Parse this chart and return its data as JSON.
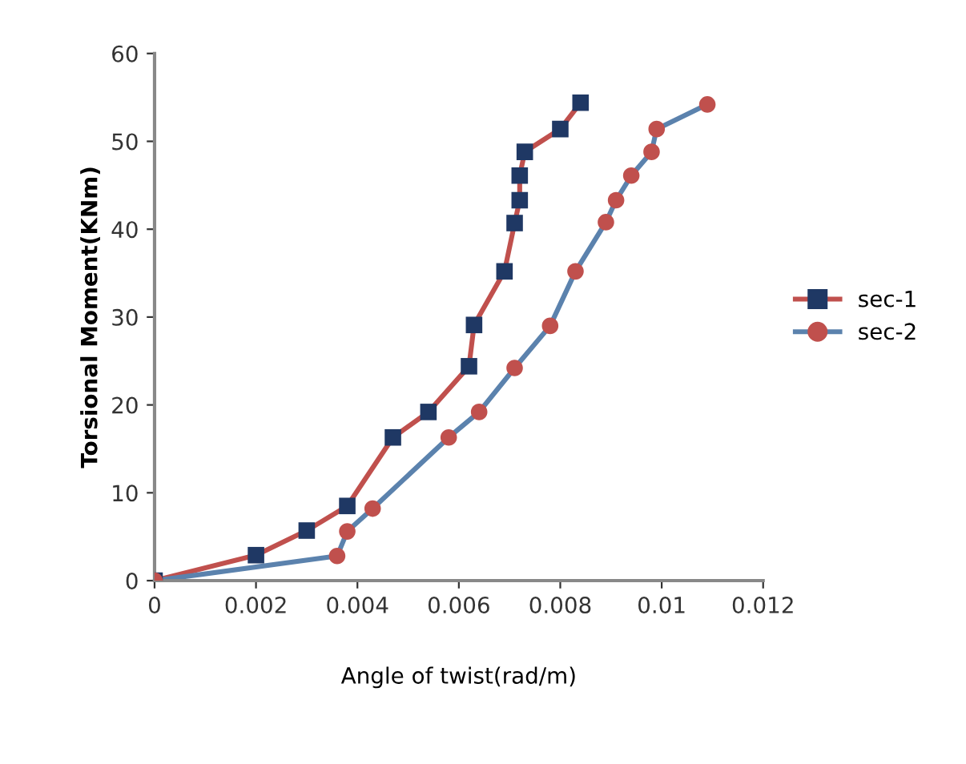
{
  "chart_data": {
    "type": "line",
    "xlabel": "Angle of twist(rad/m)",
    "ylabel": "Torsional Moment(KNm)",
    "xlim": [
      0,
      0.012
    ],
    "xticks": [
      0,
      0.002,
      0.004,
      0.006,
      0.008,
      0.01,
      0.012
    ],
    "ylim": [
      0,
      60
    ],
    "yticks": [
      0,
      10,
      20,
      30,
      40,
      50,
      60
    ],
    "grid": false,
    "legend": "right",
    "series": [
      {
        "name": "sec-1",
        "color": "#c0504d",
        "marker": "square",
        "colors": [
          "#1f3864",
          "#1f3864",
          "#1f3864",
          "#1f3864",
          "#1f3864",
          "#1f3864",
          "#1f3864",
          "#1f3864",
          "#1f3864",
          "#1f3864",
          "#1f3864",
          "#1f3864",
          "#1f3864",
          "#1f3864",
          "#1f3864"
        ],
        "x": [
          0,
          0.002,
          0.003,
          0.0038,
          0.0047,
          0.0054,
          0.0062,
          0.0063,
          0.0069,
          0.0071,
          0.0072,
          0.0072,
          0.0073,
          0.008,
          0.0084
        ],
        "values": [
          0,
          2.9,
          5.7,
          8.5,
          16.3,
          19.2,
          24.4,
          29.1,
          35.2,
          40.7,
          43.3,
          46.1,
          48.8,
          51.4,
          54.4
        ]
      },
      {
        "name": "sec-2",
        "color": "#5b82ad",
        "marker": "circle",
        "colors": [
          "#c0504d",
          "#c0504d",
          "#c0504d",
          "#c0504d",
          "#c0504d",
          "#c0504d",
          "#c0504d",
          "#c0504d",
          "#c0504d",
          "#c0504d",
          "#c0504d",
          "#c0504d",
          "#c0504d",
          "#c0504d",
          "#c0504d"
        ],
        "x": [
          0,
          0.0036,
          0.0038,
          0.0043,
          0.0058,
          0.0064,
          0.0071,
          0.0078,
          0.0083,
          0.0089,
          0.0091,
          0.0094,
          0.0098,
          0.0099,
          0.0109
        ],
        "values": [
          0,
          2.8,
          5.6,
          8.2,
          16.3,
          19.2,
          24.2,
          29.0,
          35.2,
          40.8,
          43.3,
          46.1,
          48.8,
          51.4,
          54.2
        ]
      }
    ]
  }
}
